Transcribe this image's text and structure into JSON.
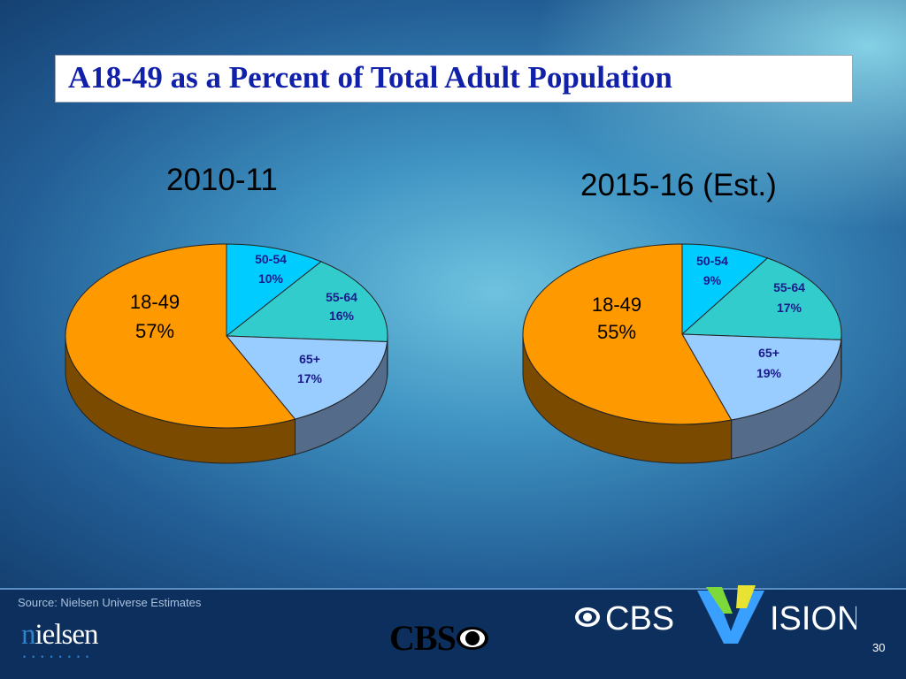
{
  "header": {
    "title": "A18-49 as a Percent of Total Adult Population"
  },
  "colors": {
    "18-49": "#ff9900",
    "50-54": "#00ccff",
    "55-64": "#33cccc",
    "65+": "#99ccff",
    "title_text": "#1020a8"
  },
  "chart_data": [
    {
      "type": "pie",
      "title": "2010-11",
      "slices": [
        {
          "label": "50-54",
          "value": 10,
          "value_label": "10%"
        },
        {
          "label": "55-64",
          "value": 16,
          "value_label": "16%"
        },
        {
          "label": "65+",
          "value": 17,
          "value_label": "17%"
        },
        {
          "label": "18-49",
          "value": 57,
          "value_label": "57%"
        }
      ]
    },
    {
      "type": "pie",
      "title": "2015-16 (Est.)",
      "slices": [
        {
          "label": "50-54",
          "value": 9,
          "value_label": "9%"
        },
        {
          "label": "55-64",
          "value": 17,
          "value_label": "17%"
        },
        {
          "label": "65+",
          "value": 19,
          "value_label": "19%"
        },
        {
          "label": "18-49",
          "value": 55,
          "value_label": "55%"
        }
      ]
    }
  ],
  "footer": {
    "source": "Source: Nielsen Universe Estimates",
    "nielsen_logo": "nielsen",
    "cbs_logo": "CBS",
    "cbs_vision_logo": "CBS VISION",
    "page_number": "30"
  }
}
